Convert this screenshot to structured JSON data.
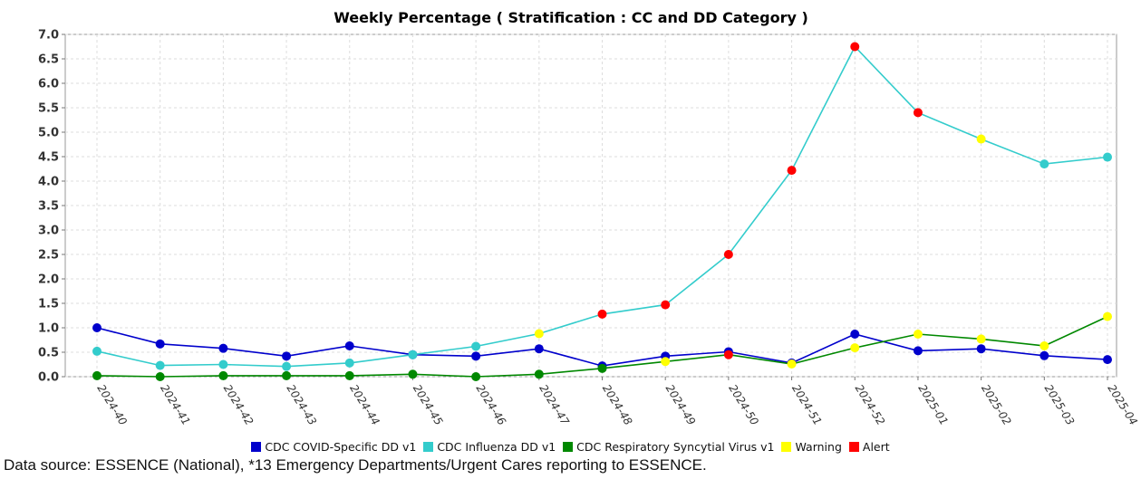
{
  "chart_data": {
    "type": "line",
    "title": "Weekly Percentage ( Stratification : CC and DD Category )",
    "xlabel": "",
    "ylabel": "",
    "ylim": [
      0,
      7.0
    ],
    "yticks": [
      "0.0",
      "0.5",
      "1.0",
      "1.5",
      "2.0",
      "2.5",
      "3.0",
      "3.5",
      "4.0",
      "4.5",
      "5.0",
      "5.5",
      "6.0",
      "6.5",
      "7.0"
    ],
    "grid": true,
    "legend_position": "bottom",
    "categories": [
      "2024-40",
      "2024-41",
      "2024-42",
      "2024-43",
      "2024-44",
      "2024-45",
      "2024-46",
      "2024-47",
      "2024-48",
      "2024-49",
      "2024-50",
      "2024-51",
      "2024-52",
      "2025-01",
      "2025-02",
      "2025-03",
      "2025-04"
    ],
    "series": [
      {
        "name": "CDC COVID-Specific DD v1",
        "color": "#0000cc",
        "values": [
          1.0,
          0.67,
          0.58,
          0.42,
          0.63,
          0.45,
          0.42,
          0.57,
          0.22,
          0.42,
          0.51,
          0.28,
          0.87,
          0.53,
          0.57,
          0.43,
          0.35
        ],
        "markers": [
          "series",
          "series",
          "series",
          "series",
          "series",
          "series",
          "series",
          "series",
          "series",
          "series",
          "series",
          "series",
          "series",
          "series",
          "series",
          "series",
          "series"
        ]
      },
      {
        "name": "CDC Influenza DD v1",
        "color": "#33cccc",
        "values": [
          0.52,
          0.23,
          0.25,
          0.21,
          0.28,
          0.45,
          0.62,
          0.88,
          1.28,
          1.47,
          2.5,
          4.22,
          6.75,
          5.4,
          4.86,
          4.35,
          4.49
        ],
        "markers": [
          "series",
          "series",
          "series",
          "series",
          "series",
          "series",
          "series",
          "warning",
          "alert",
          "alert",
          "alert",
          "alert",
          "alert",
          "alert",
          "warning",
          "series",
          "series"
        ]
      },
      {
        "name": "CDC Respiratory Syncytial Virus v1",
        "color": "#008800",
        "values": [
          0.02,
          0.0,
          0.02,
          0.02,
          0.02,
          0.05,
          0.0,
          0.05,
          0.17,
          0.31,
          0.45,
          0.26,
          0.59,
          0.87,
          0.77,
          0.63,
          1.23
        ],
        "markers": [
          "series",
          "series",
          "series",
          "series",
          "series",
          "series",
          "series",
          "series",
          "series",
          "warning",
          "alert",
          "warning",
          "warning",
          "warning",
          "warning",
          "warning",
          "warning"
        ]
      }
    ],
    "marker_legend": [
      {
        "name": "Warning",
        "color": "#ffff00"
      },
      {
        "name": "Alert",
        "color": "#ff0000"
      }
    ]
  },
  "source_note": "Data source: ESSENCE (National), *13 Emergency Departments/Urgent Cares reporting to ESSENCE."
}
